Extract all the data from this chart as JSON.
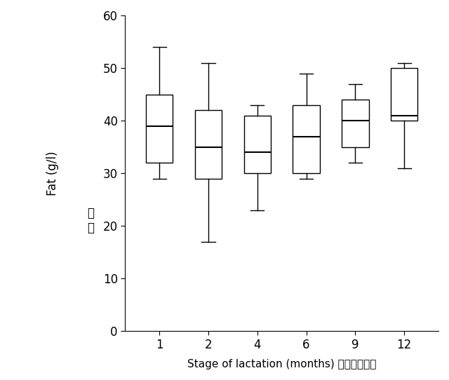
{
  "categories": [
    1,
    2,
    4,
    6,
    9,
    12
  ],
  "boxes": [
    {
      "whisker_low": 29,
      "q1": 32,
      "median": 39,
      "q3": 45,
      "whisker_high": 54
    },
    {
      "whisker_low": 17,
      "q1": 29,
      "median": 35,
      "q3": 42,
      "whisker_high": 51
    },
    {
      "whisker_low": 23,
      "q1": 30,
      "median": 34,
      "q3": 41,
      "whisker_high": 43
    },
    {
      "whisker_low": 29,
      "q1": 30,
      "median": 37,
      "q3": 43,
      "whisker_high": 49
    },
    {
      "whisker_low": 32,
      "q1": 35,
      "median": 40,
      "q3": 44,
      "whisker_high": 47
    },
    {
      "whisker_low": 31,
      "q1": 40,
      "median": 41,
      "q3": 50,
      "whisker_high": 51
    }
  ],
  "ylabel_english": "Fat (g/l)",
  "ylabel_chinese": "脂\n肪",
  "xlabel": "Stage of lactation (months) 哺乳期（月）",
  "ylim": [
    0,
    60
  ],
  "yticks": [
    0,
    10,
    20,
    30,
    40,
    50,
    60
  ],
  "box_width": 0.55,
  "box_facecolor": "white",
  "box_edgecolor": "black",
  "median_color": "black",
  "whisker_color": "black",
  "cap_color": "black",
  "background_color": "white",
  "line_width": 1.0,
  "median_linewidth": 1.5
}
